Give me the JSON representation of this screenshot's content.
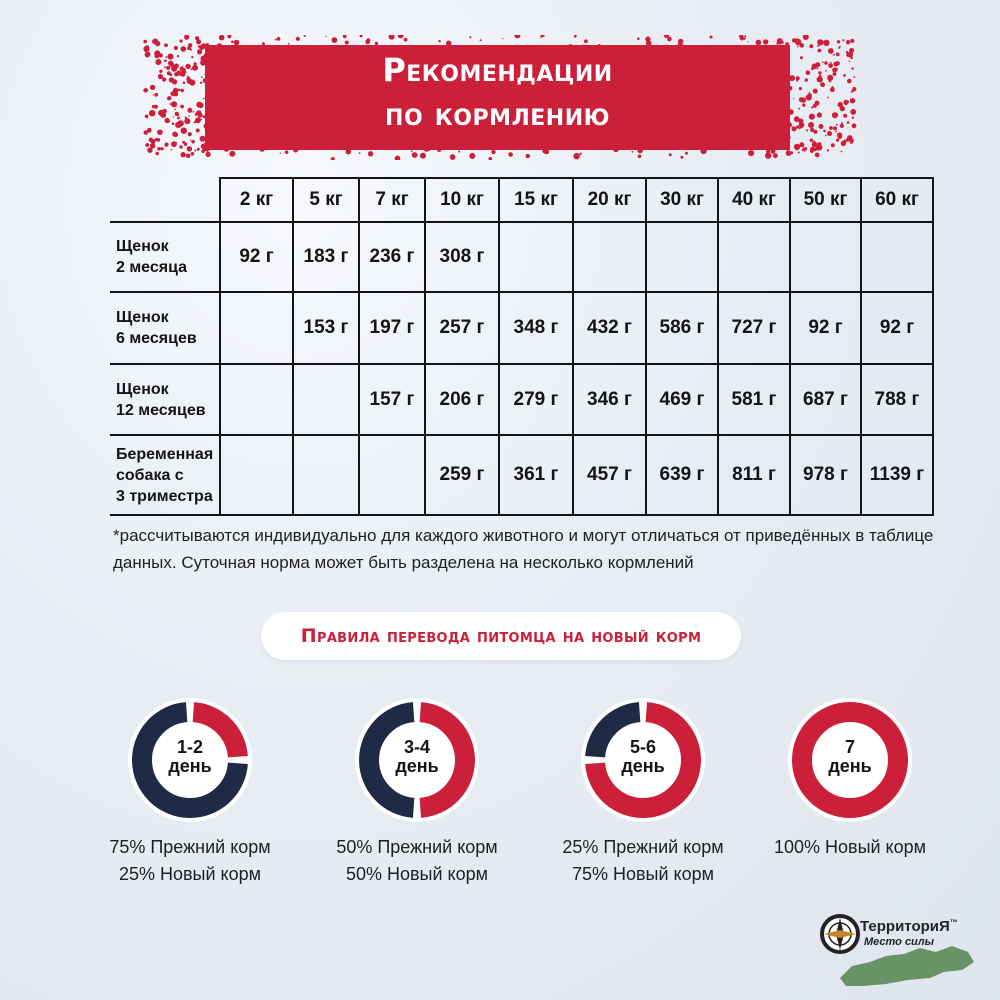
{
  "header": {
    "title_line1": "Рекомендации",
    "title_line2": "по кормлению"
  },
  "table": {
    "columns": [
      "2 кг",
      "5 кг",
      "7 кг",
      "10 кг",
      "15 кг",
      "20 кг",
      "30 кг",
      "40 кг",
      "50 кг",
      "60 кг"
    ],
    "rows": [
      {
        "label_lines": [
          "Щенок",
          "2 месяца"
        ],
        "values": [
          "92 г",
          "183 г",
          "236 г",
          "308 г",
          "",
          "",
          "",
          "",
          "",
          ""
        ]
      },
      {
        "label_lines": [
          "Щенок",
          "6 месяцев"
        ],
        "values": [
          "",
          "153 г",
          "197 г",
          "257 г",
          "348 г",
          "432 г",
          "586 г",
          "727 г",
          "92 г",
          "92 г"
        ]
      },
      {
        "label_lines": [
          "Щенок",
          "12 месяцев"
        ],
        "values": [
          "",
          "",
          "157 г",
          "206 г",
          "279 г",
          "346 г",
          "469 г",
          "581 г",
          "687 г",
          "788 г"
        ]
      },
      {
        "label_lines": [
          "Беременная",
          "собака с",
          "3 триместра"
        ],
        "values": [
          "",
          "",
          "",
          "259 г",
          "361 г",
          "457 г",
          "639 г",
          "811 г",
          "978 г",
          "1139 г"
        ]
      }
    ]
  },
  "note": "*рассчитываются индивидуально для каждого животного и могут отличаться от приведённых в таблице данных. Суточная норма может быть разделена на несколько кормлений",
  "transition": {
    "title": "Правила перевода питомца на новый корм",
    "steps": [
      {
        "day": "1-2",
        "unit": "день",
        "new_fraction": 0.25,
        "old_text": "75% Прежний корм",
        "new_text": "25% Новый корм"
      },
      {
        "day": "3-4",
        "unit": "день",
        "new_fraction": 0.5,
        "old_text": "50% Прежний корм",
        "new_text": "50% Новый корм"
      },
      {
        "day": "5-6",
        "unit": "день",
        "new_fraction": 0.75,
        "old_text": "25% Прежний корм",
        "new_text": "75% Новый корм"
      },
      {
        "day": "7",
        "unit": "день",
        "new_fraction": 1.0,
        "old_text": "",
        "new_text": "100% Новый корм"
      }
    ]
  },
  "brand": {
    "name": "ТерриториЯ",
    "tm": "™",
    "tagline": "Место силы"
  },
  "colors": {
    "accent_red": "#cc1f3a",
    "navy": "#1f2a44",
    "text": "#1f1f1f"
  }
}
